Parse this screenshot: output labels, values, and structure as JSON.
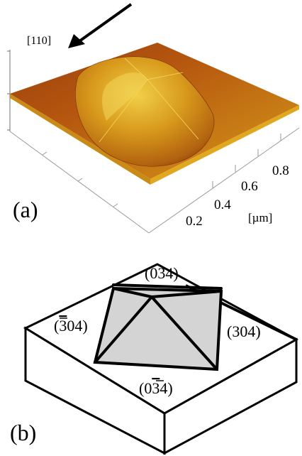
{
  "panel_a": {
    "label": "(a)",
    "direction_label": "[110]",
    "axis_ticks": [
      "0.2",
      "0.4",
      "0.6",
      "0.8"
    ],
    "axis_unit": "[µm]",
    "colors": {
      "surface_dark": "#7a2a0a",
      "surface_mid": "#a4490f",
      "surface_light": "#e8b21e",
      "island_top": "#f2d24a"
    }
  },
  "panel_b": {
    "label": "(b)",
    "facet_top": "(034)",
    "facet_left_bar": "3",
    "facet_left_rest": "04)",
    "facet_right": "(304)",
    "facet_bottom_pre": "(0",
    "facet_bottom_bar": "3",
    "facet_bottom_post": "4)",
    "colors": {
      "pyramid_fill": "#d4d4d4",
      "line": "#000000"
    }
  }
}
